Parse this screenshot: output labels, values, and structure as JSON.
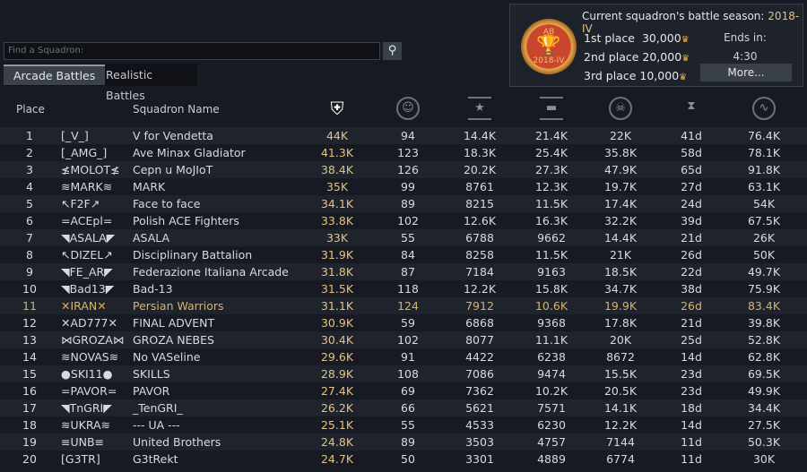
{
  "season": {
    "title": "Current squadron's battle season:",
    "season": "2018-IV",
    "medal_label": "2018-IV",
    "medal_top": "AB",
    "prizes": [
      {
        "label": "1st place",
        "amount": "30,000"
      },
      {
        "label": "2nd place",
        "amount": "20,000"
      },
      {
        "label": "3rd place",
        "amount": "10,000"
      }
    ],
    "ends_label": "Ends in:",
    "ends_value": "4:30",
    "more_label": "More..."
  },
  "search": {
    "placeholder": "Find a Squadron:"
  },
  "tabs": [
    {
      "label": "Arcade Battles",
      "active": true
    },
    {
      "label": "Realistic Battles",
      "active": false
    }
  ],
  "columns": {
    "place": "Place",
    "name": "Squadron Name",
    "icons": [
      "squadron-rating-icon",
      "players-icon",
      "air-kills-icon",
      "ground-kills-icon",
      "deaths-icon",
      "playtime-icon",
      "activity-icon"
    ]
  },
  "colors": {
    "accent": "#e6c27e",
    "highlight_row": "#d9b26a"
  },
  "rows": [
    [
      "1",
      "[_V_]",
      "V for Vendetta",
      "44K",
      "94",
      "14.4K",
      "21.4K",
      "22K",
      "41d",
      "76.4K"
    ],
    [
      "2",
      "[_AMG_]",
      "Ave Minax Gladiator",
      "41.3K",
      "123",
      "18.3K",
      "25.4K",
      "35.8K",
      "58d",
      "78.1K"
    ],
    [
      "3",
      "≰MOLOT≰",
      "Cepn u MoJIoT",
      "38.4K",
      "126",
      "20.2K",
      "27.3K",
      "47.9K",
      "65d",
      "91.8K"
    ],
    [
      "4",
      "≋MARK≋",
      "MARK",
      "35K",
      "99",
      "8761",
      "12.3K",
      "19.7K",
      "27d",
      "63.1K"
    ],
    [
      "5",
      "↖F2F↗",
      "Face to face",
      "34.1K",
      "89",
      "8215",
      "11.5K",
      "17.4K",
      "24d",
      "54K"
    ],
    [
      "6",
      "=ACEpl=",
      "Polish ACE Fighters",
      "33.8K",
      "102",
      "12.6K",
      "16.3K",
      "32.2K",
      "39d",
      "67.5K"
    ],
    [
      "7",
      "◥ASALA◤",
      "ASALA",
      "33K",
      "55",
      "6788",
      "9662",
      "14.4K",
      "21d",
      "26K"
    ],
    [
      "8",
      "↖DIZEL↗",
      "Disciplinary Battalion",
      "31.9K",
      "84",
      "8258",
      "11.5K",
      "21K",
      "26d",
      "50K"
    ],
    [
      "9",
      "◥FE_AR◤",
      "Federazione Italiana Arcade",
      "31.8K",
      "87",
      "7184",
      "9163",
      "18.5K",
      "22d",
      "49.7K"
    ],
    [
      "10",
      "◥Bad13◤",
      "Bad-13",
      "31.5K",
      "118",
      "12.2K",
      "15.8K",
      "34.7K",
      "38d",
      "75.9K"
    ],
    [
      "11",
      "✕IRAN✕",
      "Persian Warriors",
      "31.1K",
      "124",
      "7912",
      "10.6K",
      "19.9K",
      "26d",
      "83.4K"
    ],
    [
      "12",
      "✕AD777✕",
      "FINAL ADVENT",
      "30.9K",
      "59",
      "6868",
      "9368",
      "17.8K",
      "21d",
      "39.8K"
    ],
    [
      "13",
      "⋈GROZA⋈",
      "GROZA NEBES",
      "30.4K",
      "102",
      "8077",
      "11.1K",
      "20K",
      "25d",
      "52.8K"
    ],
    [
      "14",
      "≋NOVAS≋",
      "No VASeline",
      "29.6K",
      "91",
      "4422",
      "6238",
      "8672",
      "14d",
      "62.8K"
    ],
    [
      "15",
      "●SKI11●",
      "SKILLS",
      "28.9K",
      "108",
      "7086",
      "9474",
      "15.5K",
      "23d",
      "69.5K"
    ],
    [
      "16",
      "=PAVOR=",
      "PAVOR",
      "27.4K",
      "69",
      "7362",
      "10.2K",
      "20.5K",
      "23d",
      "49.9K"
    ],
    [
      "17",
      "◥TnGRI◤",
      "_TenGRI_",
      "26.2K",
      "66",
      "5621",
      "7571",
      "14.1K",
      "18d",
      "34.4K"
    ],
    [
      "18",
      "≋UKRA≋",
      "--- UA ---",
      "25.1K",
      "55",
      "4533",
      "6230",
      "12.2K",
      "14d",
      "27.5K"
    ],
    [
      "19",
      "≡UNB≡",
      "United Brothers",
      "24.8K",
      "89",
      "3503",
      "4757",
      "7144",
      "11d",
      "50.3K"
    ],
    [
      "20",
      "[G3TR]",
      "G3tRekt",
      "24.7K",
      "50",
      "3301",
      "4889",
      "6774",
      "11d",
      "30K"
    ]
  ],
  "highlighted_place": "11"
}
